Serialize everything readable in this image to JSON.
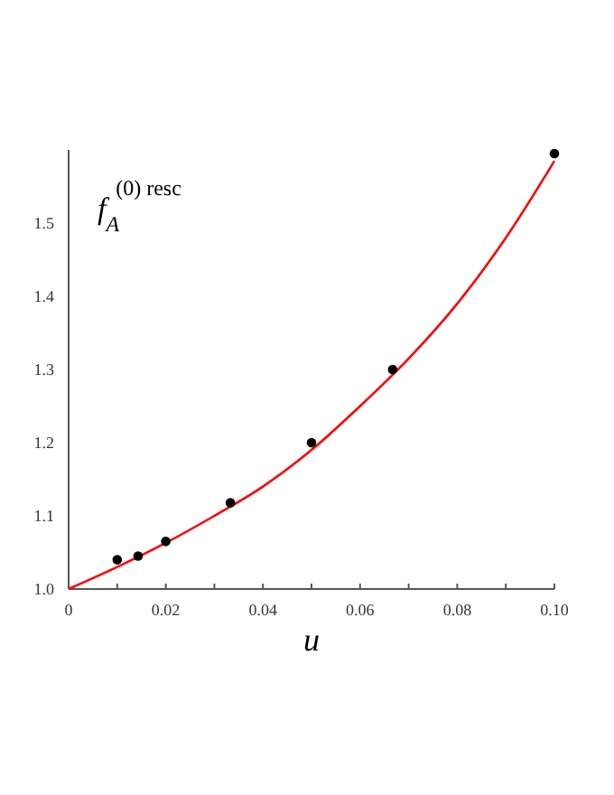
{
  "chart_data": {
    "type": "scatter",
    "xlabel": "u",
    "ylabel": "f$_{A}$$^{(0) resc}$",
    "xlim": [
      0,
      0.1
    ],
    "ylim": [
      1.0,
      1.6
    ],
    "xticks": [
      0,
      {
        "value": 0.01,
        "label": null
      },
      {
        "value": 0.02,
        "label": "0.02"
      },
      {
        "value": 0.03,
        "label": null
      },
      {
        "value": 0.04,
        "label": "0.04"
      },
      {
        "value": 0.05,
        "label": null
      },
      {
        "value": 0.06,
        "label": "0.06"
      },
      {
        "value": 0.07,
        "label": null
      },
      {
        "value": 0.08,
        "label": "0.08"
      },
      {
        "value": 0.09,
        "label": null
      },
      {
        "value": 0.1,
        "label": "0.10"
      }
    ],
    "yticks": [
      {
        "value": 1.0,
        "label": "1.0"
      },
      1.1,
      1.2,
      1.3,
      1.4,
      1.5
    ],
    "grid": false,
    "series": [
      {
        "type": "line",
        "color": "#ff0000",
        "marker": "none",
        "line_style": "solid",
        "x": [
          0,
          0.01,
          0.02,
          0.03,
          0.04,
          0.05,
          0.06,
          0.07,
          0.08,
          0.09,
          0.1
        ],
        "values": [
          1.0,
          1.03,
          1.063,
          1.1,
          1.14,
          1.19,
          1.25,
          1.315,
          1.39,
          1.48,
          1.585
        ]
      },
      {
        "color": "#000000",
        "marker": "circle",
        "x": [
          0.01,
          0.0143,
          0.02,
          0.0333,
          0.05,
          0.0667,
          0.1
        ],
        "values": [
          1.04,
          1.045,
          1.065,
          1.118,
          1.2,
          1.3,
          1.595
        ]
      }
    ]
  }
}
